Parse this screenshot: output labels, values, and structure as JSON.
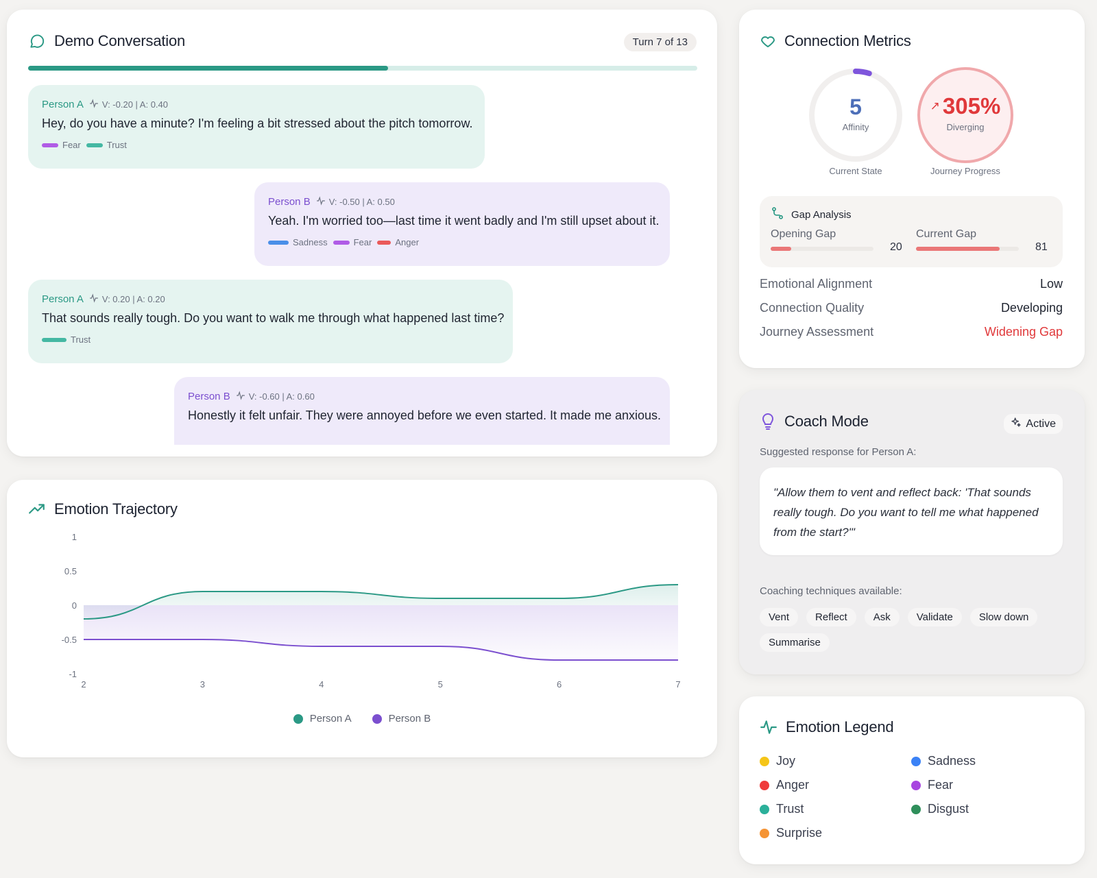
{
  "conversation": {
    "title": "Demo Conversation",
    "turn_badge": "Turn 7 of 13",
    "progress": 0.538,
    "messages": [
      {
        "speaker": "Person A",
        "va": "V: -0.20 | A: 0.40",
        "text": "Hey, do you have a minute? I'm feeling a bit stressed about the pitch tomorrow.",
        "tags": [
          "Fear",
          "Trust"
        ]
      },
      {
        "speaker": "Person B",
        "va": "V: -0.50 | A: 0.50",
        "text": "Yeah. I'm worried too—last time it went badly and I'm still upset about it.",
        "tags": [
          "Sadness",
          "Fear",
          "Anger"
        ]
      },
      {
        "speaker": "Person A",
        "va": "V: 0.20 | A: 0.20",
        "text": "That sounds really tough. Do you want to walk me through what happened last time?",
        "tags": [
          "Trust"
        ]
      },
      {
        "speaker": "Person B",
        "va": "V: -0.60 | A: 0.60",
        "text": "Honestly it felt unfair. They were annoyed before we even started. It made me anxious.",
        "tags": []
      }
    ]
  },
  "trajectory": {
    "title": "Emotion Trajectory",
    "legend": [
      "Person A",
      "Person B"
    ]
  },
  "chart_data": {
    "type": "line",
    "x": [
      2,
      3,
      4,
      5,
      6,
      7
    ],
    "ylim": [
      -1,
      1
    ],
    "yticks": [
      "1",
      "0.5",
      "0",
      "-0.5",
      "-1"
    ],
    "xticks": [
      "2",
      "3",
      "4",
      "5",
      "6",
      "7"
    ],
    "series": [
      {
        "name": "Person A",
        "values": [
          -0.2,
          0.2,
          0.2,
          0.1,
          0.1,
          0.3
        ],
        "color": "#2b9985"
      },
      {
        "name": "Person B",
        "values": [
          -0.5,
          -0.5,
          -0.6,
          -0.6,
          -0.8,
          -0.8
        ],
        "color": "#7b4fcf"
      }
    ]
  },
  "metrics": {
    "title": "Connection Metrics",
    "affinity_value": "5",
    "affinity_label": "Affinity",
    "affinity_caption": "Current State",
    "affinity_fraction": 0.05,
    "journey_value": "305%",
    "journey_arrow": "↗",
    "journey_label": "Diverging",
    "journey_caption": "Journey Progress",
    "gap": {
      "title": "Gap Analysis",
      "opening_label": "Opening Gap",
      "opening_value": "20",
      "opening_fraction": 0.2,
      "current_label": "Current Gap",
      "current_value": "81",
      "current_fraction": 0.81
    },
    "rows": [
      {
        "k": "Emotional Alignment",
        "v": "Low"
      },
      {
        "k": "Connection Quality",
        "v": "Developing"
      },
      {
        "k": "Journey Assessment",
        "v": "Widening Gap"
      }
    ]
  },
  "coach": {
    "title": "Coach Mode",
    "status": "Active",
    "subtitle": "Suggested response for Person A:",
    "quote": "\"Allow them to vent and reflect back: 'That sounds really tough. Do you want to tell me what happened from the start?'\"",
    "techniques_title": "Coaching techniques available:",
    "techniques": [
      "Vent",
      "Reflect",
      "Ask",
      "Validate",
      "Slow down",
      "Summarise"
    ]
  },
  "legend": {
    "title": "Emotion Legend",
    "items": [
      {
        "name": "Joy",
        "color": "#f5c518"
      },
      {
        "name": "Sadness",
        "color": "#3b82f6"
      },
      {
        "name": "Anger",
        "color": "#ef3b3b"
      },
      {
        "name": "Fear",
        "color": "#a846e0"
      },
      {
        "name": "Trust",
        "color": "#2bb09a"
      },
      {
        "name": "Disgust",
        "color": "#2f8f5b"
      },
      {
        "name": "Surprise",
        "color": "#f59434"
      }
    ]
  },
  "tag_colors": {
    "Fear": "#b05ce6",
    "Trust": "#44b8a3",
    "Sadness": "#4a8fe8",
    "Anger": "#ea5a5a"
  }
}
